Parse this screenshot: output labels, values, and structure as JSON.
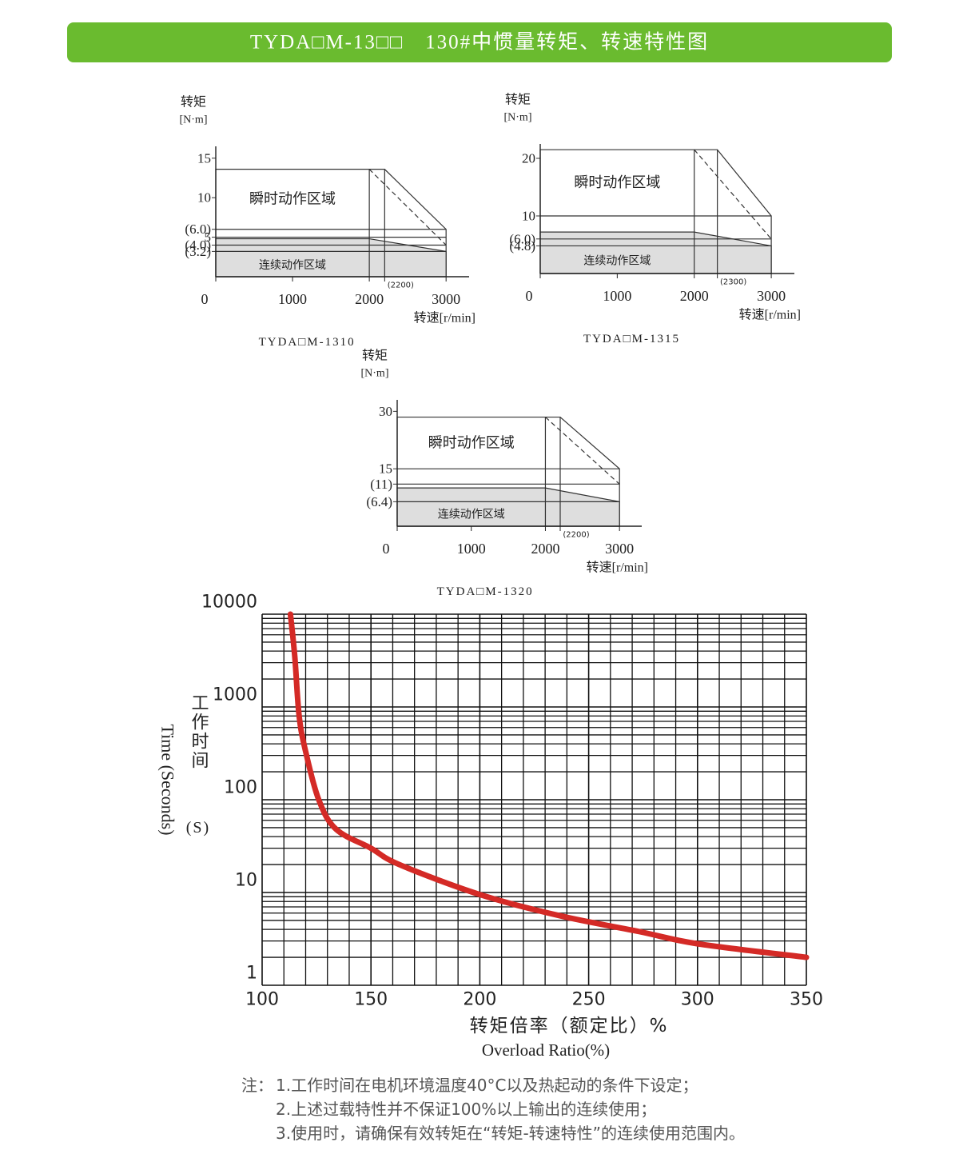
{
  "header": {
    "title": "TYDA□M-13□□　130#中惯量转矩、转速特性图"
  },
  "chart_data": [
    {
      "type": "torque-speed",
      "y_label": "转矩",
      "y_unit": "[N·m]",
      "x_label": "转速[r/min]",
      "caption": "TYDA□M-1310",
      "instant_label": "瞬时动作区域",
      "continuous_label": "连续动作区域",
      "xlim": [
        0,
        3300
      ],
      "ylim": [
        0,
        16.5
      ],
      "xticks": [
        0,
        1000,
        2000,
        3000,
        {
          "value": 2200,
          "label": "(2200)"
        }
      ],
      "yticks": [
        15,
        10,
        {
          "value": 6,
          "label": "(6.0)"
        },
        5,
        {
          "value": 4,
          "label": "(4.0)"
        },
        {
          "value": 3.2,
          "label": "(3.2)"
        }
      ],
      "instantaneous": {
        "x": [
          0,
          2200,
          3000
        ],
        "values": [
          13.6,
          13.6,
          6
        ]
      },
      "dashed": {
        "x": [
          2000,
          3000
        ],
        "values": [
          13.6,
          4
        ]
      },
      "continuous": {
        "x": [
          0,
          2000,
          3000
        ],
        "values": [
          4.8,
          4.8,
          3.2
        ]
      },
      "continuous_color": "#dedede"
    },
    {
      "type": "torque-speed",
      "y_label": "转矩",
      "y_unit": "[N·m]",
      "x_label": "转速[r/min]",
      "caption": "TYDA□M-1315",
      "instant_label": "瞬时动作区域",
      "continuous_label": "连续动作区域",
      "xlim": [
        0,
        3300
      ],
      "ylim": [
        0,
        22.5
      ],
      "xticks": [
        0,
        1000,
        2000,
        3000,
        {
          "value": 2300,
          "label": "(2300)"
        }
      ],
      "yticks": [
        20,
        10,
        {
          "value": 6,
          "label": "(6.0)"
        },
        {
          "value": 4.8,
          "label": "(4.8)"
        }
      ],
      "instantaneous": {
        "x": [
          0,
          2300,
          3000
        ],
        "values": [
          21.5,
          21.5,
          10
        ]
      },
      "dashed": {
        "x": [
          2000,
          3000
        ],
        "values": [
          21.5,
          6
        ]
      },
      "continuous": {
        "x": [
          0,
          2000,
          3000
        ],
        "values": [
          7.2,
          7.2,
          4.8
        ]
      },
      "continuous_color": "#dedede"
    },
    {
      "type": "torque-speed",
      "y_label": "转矩",
      "y_unit": "[N·m]",
      "x_label": "转速[r/min]",
      "caption": "TYDA□M-1320",
      "instant_label": "瞬时动作区域",
      "continuous_label": "连续动作区域",
      "xlim": [
        0,
        3300
      ],
      "ylim": [
        0,
        33
      ],
      "xticks": [
        0,
        1000,
        2000,
        3000,
        {
          "value": 2200,
          "label": "(2200)"
        }
      ],
      "yticks": [
        30,
        15,
        {
          "value": 11,
          "label": "(11)"
        },
        {
          "value": 6.4,
          "label": "(6.4)"
        }
      ],
      "instantaneous": {
        "x": [
          0,
          2200,
          3000
        ],
        "values": [
          28.5,
          28.5,
          15
        ]
      },
      "dashed": {
        "x": [
          2000,
          3000
        ],
        "values": [
          28.5,
          11
        ]
      },
      "continuous": {
        "x": [
          0,
          2000,
          3000
        ],
        "values": [
          10,
          10,
          6.4
        ]
      },
      "continuous_color": "#dedede"
    },
    {
      "type": "line",
      "log_y": true,
      "grid": true,
      "y_label": "工作时间",
      "y_unit": "(S)",
      "y_label_en": "Time (Seconds)",
      "x_label": "转矩倍率（额定比）%",
      "x_label_en": "Overload Ratio(%)",
      "x": [
        113,
        115,
        117,
        120,
        126,
        134,
        150,
        163,
        200,
        237,
        273,
        300,
        350
      ],
      "values": [
        10000,
        3500,
        800,
        330,
        100,
        48,
        30,
        20,
        9.5,
        5.6,
        3.8,
        2.8,
        2.0
      ],
      "color": "#d42a26",
      "xlim": [
        100,
        350
      ],
      "ylim": [
        1,
        10000
      ],
      "xticks": [
        100,
        150,
        200,
        250,
        300,
        350
      ],
      "yticks": [
        1,
        10,
        100,
        1000,
        10000
      ]
    }
  ],
  "notes": {
    "label": "注：",
    "items": [
      "1.工作时间在电机环境温度40°C以及热起动的条件下设定；",
      "2.上述过载特性并不保证100%以上输出的连续使用；",
      "3.使用时，请确保有效转矩在“转矩-转速特性”的连续使用范围内。"
    ]
  }
}
